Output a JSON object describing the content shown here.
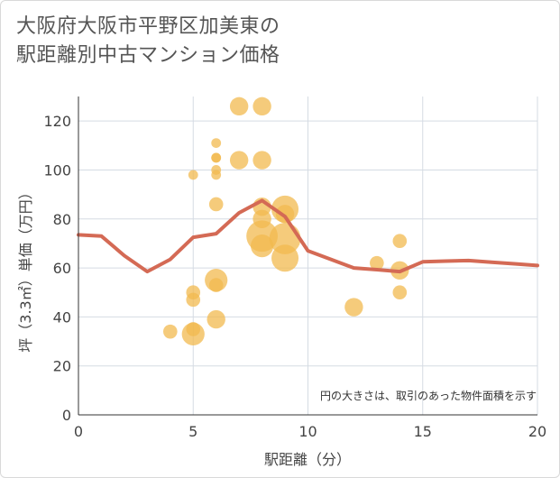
{
  "chart_data": {
    "type": "scatter",
    "title": [
      "大阪府大阪市平野区加美東の",
      "駅距離別中古マンション価格"
    ],
    "xlabel": "駅距離（分）",
    "ylabel": "坪（3.3㎡）単価（万円）",
    "xlim": [
      0,
      20
    ],
    "ylim": [
      0,
      130
    ],
    "xticks": [
      0,
      5,
      10,
      15,
      20
    ],
    "yticks": [
      0,
      20,
      40,
      60,
      80,
      100,
      120
    ],
    "note": "円の大きさは、取引のあった物件面積を示す",
    "colors": {
      "bubble": "#f2b94f",
      "line": "#d46a55",
      "grid": "#d5dbe3"
    },
    "bubbles": [
      {
        "x": 4,
        "y": 34,
        "size": 2
      },
      {
        "x": 5,
        "y": 98,
        "size": 1
      },
      {
        "x": 5,
        "y": 50,
        "size": 2
      },
      {
        "x": 5,
        "y": 47,
        "size": 2
      },
      {
        "x": 5,
        "y": 35,
        "size": 2
      },
      {
        "x": 5,
        "y": 33,
        "size": 4
      },
      {
        "x": 6,
        "y": 111,
        "size": 1
      },
      {
        "x": 6,
        "y": 105,
        "size": 1
      },
      {
        "x": 6,
        "y": 105,
        "size": 1
      },
      {
        "x": 6,
        "y": 100,
        "size": 1
      },
      {
        "x": 6,
        "y": 98,
        "size": 1
      },
      {
        "x": 6,
        "y": 86,
        "size": 2
      },
      {
        "x": 6,
        "y": 55,
        "size": 4
      },
      {
        "x": 6,
        "y": 53,
        "size": 2
      },
      {
        "x": 6,
        "y": 39,
        "size": 3
      },
      {
        "x": 7,
        "y": 126,
        "size": 3
      },
      {
        "x": 7,
        "y": 104,
        "size": 3
      },
      {
        "x": 8,
        "y": 126,
        "size": 3
      },
      {
        "x": 8,
        "y": 104,
        "size": 3
      },
      {
        "x": 8,
        "y": 85,
        "size": 3
      },
      {
        "x": 8,
        "y": 80,
        "size": 3
      },
      {
        "x": 8,
        "y": 73,
        "size": 6
      },
      {
        "x": 8,
        "y": 69,
        "size": 4
      },
      {
        "x": 9,
        "y": 84,
        "size": 5
      },
      {
        "x": 9,
        "y": 82,
        "size": 3
      },
      {
        "x": 9,
        "y": 72,
        "size": 6
      },
      {
        "x": 9,
        "y": 64,
        "size": 5
      },
      {
        "x": 12,
        "y": 44,
        "size": 3
      },
      {
        "x": 13,
        "y": 62,
        "size": 2
      },
      {
        "x": 14,
        "y": 71,
        "size": 2
      },
      {
        "x": 14,
        "y": 59,
        "size": 3
      },
      {
        "x": 14,
        "y": 50,
        "size": 2
      }
    ],
    "trend_line": {
      "x": [
        0,
        1,
        2,
        3,
        4,
        5,
        6,
        7,
        8,
        9,
        10,
        11,
        12,
        13,
        14,
        15,
        16,
        17,
        18,
        19,
        20
      ],
      "y": [
        73.5,
        73,
        65,
        58.5,
        63.5,
        72.5,
        74,
        82.5,
        87.5,
        81,
        67,
        63.5,
        60,
        59.3,
        58.5,
        62.5,
        62.8,
        63,
        62.3,
        61.7,
        61
      ]
    }
  }
}
